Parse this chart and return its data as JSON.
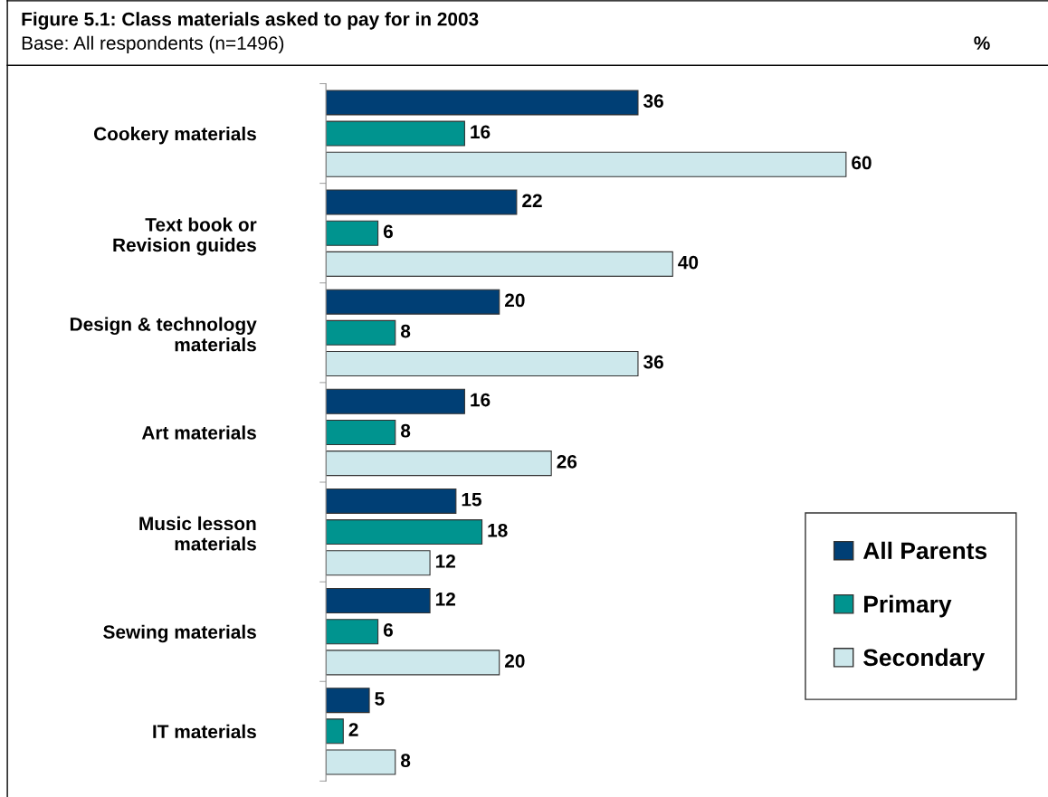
{
  "chart_data": {
    "type": "bar",
    "orientation": "horizontal",
    "title": "Figure 5.1: Class materials asked to pay for in 2003",
    "subtitle": "Base: All respondents (n=1496)",
    "annotations": [
      "%"
    ],
    "categories": [
      "Cookery materials",
      "Text book or\nRevision guides",
      "Design & technology\nmaterials",
      "Art materials",
      "Music lesson\nmaterials",
      "Sewing materials",
      "IT materials"
    ],
    "series": [
      {
        "name": "All Parents",
        "color": "#003f75",
        "values": [
          36,
          22,
          20,
          16,
          15,
          12,
          5
        ]
      },
      {
        "name": "Primary",
        "color": "#00948f",
        "values": [
          16,
          6,
          8,
          8,
          18,
          6,
          2
        ]
      },
      {
        "name": "Secondary",
        "color": "#cde8ec",
        "values": [
          60,
          40,
          36,
          26,
          12,
          20,
          8
        ]
      }
    ],
    "data_labels": true,
    "legend": "bottom right",
    "grid": false
  }
}
